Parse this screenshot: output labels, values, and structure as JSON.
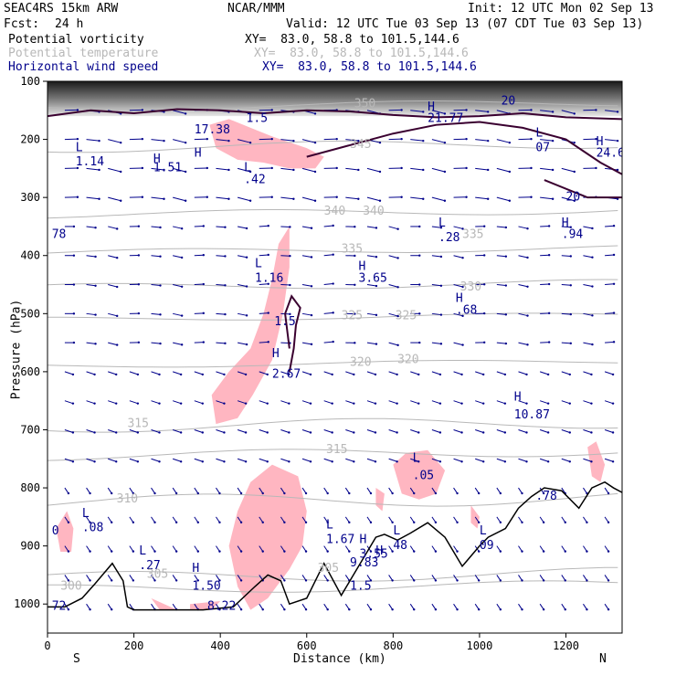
{
  "header": {
    "model": "SEAC4RS 15km ARW",
    "org": "NCAR/MMM",
    "init": "Init: 12 UTC Mon 02 Sep 13",
    "fcst_label": "Fcst:",
    "fcst_value": "24 h",
    "valid": "Valid: 12 UTC Tue 03 Sep 13 (07 CDT Tue 03 Sep 13)",
    "fields": [
      {
        "name": "Potential vorticity",
        "xy": "XY=  83.0, 58.8 to 101.5,144.6",
        "color": "#000000"
      },
      {
        "name": "Potential temperature",
        "xy": "XY=  83.0, 58.8 to 101.5,144.6",
        "color": "#b8b8b8"
      },
      {
        "name": "Horizontal wind speed",
        "xy": "XY=  83.0, 58.8 to 101.5,144.6",
        "color": "#00008b"
      }
    ]
  },
  "chart_data": {
    "type": "cross-section",
    "xlabel": "Distance (km)",
    "ylabel": "Pressure (hPa)",
    "xlim": [
      0,
      1330
    ],
    "ylim": [
      100,
      1050
    ],
    "x_ticks": [
      0,
      200,
      400,
      600,
      800,
      1000,
      1200
    ],
    "y_ticks": [
      100,
      200,
      300,
      400,
      500,
      600,
      700,
      800,
      900,
      1000
    ],
    "end_labels": {
      "left": "S",
      "right": "N"
    },
    "terrain_surface": [
      [
        0,
        1005
      ],
      [
        40,
        1005
      ],
      [
        80,
        990
      ],
      [
        110,
        965
      ],
      [
        150,
        930
      ],
      [
        175,
        960
      ],
      [
        185,
        1005
      ],
      [
        200,
        1010
      ],
      [
        260,
        1010
      ],
      [
        360,
        1010
      ],
      [
        430,
        1005
      ],
      [
        480,
        970
      ],
      [
        510,
        950
      ],
      [
        540,
        960
      ],
      [
        560,
        1000
      ],
      [
        600,
        990
      ],
      [
        640,
        930
      ],
      [
        680,
        985
      ],
      [
        720,
        935
      ],
      [
        760,
        885
      ],
      [
        780,
        880
      ],
      [
        810,
        890
      ],
      [
        840,
        878
      ],
      [
        880,
        860
      ],
      [
        920,
        885
      ],
      [
        960,
        935
      ],
      [
        1000,
        900
      ],
      [
        1020,
        885
      ],
      [
        1060,
        870
      ],
      [
        1090,
        835
      ],
      [
        1120,
        815
      ],
      [
        1150,
        800
      ],
      [
        1190,
        805
      ],
      [
        1230,
        835
      ],
      [
        1260,
        800
      ],
      [
        1290,
        790
      ],
      [
        1310,
        800
      ],
      [
        1330,
        808
      ]
    ],
    "pv_labels": [
      {
        "x": 340,
        "p": 230,
        "t": "H"
      },
      {
        "x": 340,
        "p": 190,
        "t": "17.38"
      },
      {
        "x": 455,
        "p": 255,
        "t": "L"
      },
      {
        "x": 455,
        "p": 275,
        "t": ".42"
      },
      {
        "x": 65,
        "p": 220,
        "t": "L"
      },
      {
        "x": 65,
        "p": 245,
        "t": "1.14"
      },
      {
        "x": 245,
        "p": 240,
        "t": "H"
      },
      {
        "x": 245,
        "p": 255,
        "t": "1.51"
      },
      {
        "x": 460,
        "p": 170,
        "t": "1.5"
      },
      {
        "x": 880,
        "p": 150,
        "t": "H"
      },
      {
        "x": 880,
        "p": 170,
        "t": "21.77"
      },
      {
        "x": 1050,
        "p": 140,
        "t": "20"
      },
      {
        "x": 1130,
        "p": 195,
        "t": "L"
      },
      {
        "x": 1130,
        "p": 220,
        "t": "07"
      },
      {
        "x": 1270,
        "p": 210,
        "t": "H"
      },
      {
        "x": 1270,
        "p": 230,
        "t": "24.6"
      },
      {
        "x": 1200,
        "p": 305,
        "t": "20"
      },
      {
        "x": 480,
        "p": 420,
        "t": "L"
      },
      {
        "x": 480,
        "p": 445,
        "t": "1.16"
      },
      {
        "x": 1190,
        "p": 350,
        "t": "H"
      },
      {
        "x": 1190,
        "p": 370,
        "t": ".94"
      },
      {
        "x": 905,
        "p": 350,
        "t": "L"
      },
      {
        "x": 905,
        "p": 375,
        "t": ".28"
      },
      {
        "x": 720,
        "p": 425,
        "t": "H"
      },
      {
        "x": 720,
        "p": 445,
        "t": "3.65"
      },
      {
        "x": 945,
        "p": 480,
        "t": "H"
      },
      {
        "x": 945,
        "p": 500,
        "t": ".68"
      },
      {
        "x": 525,
        "p": 520,
        "t": "1.5"
      },
      {
        "x": 520,
        "p": 575,
        "t": "H"
      },
      {
        "x": 520,
        "p": 610,
        "t": "2.67"
      },
      {
        "x": 1080,
        "p": 650,
        "t": "H"
      },
      {
        "x": 1080,
        "p": 680,
        "t": "10.87"
      },
      {
        "x": 845,
        "p": 755,
        "t": "L"
      },
      {
        "x": 845,
        "p": 785,
        "t": ".05"
      },
      {
        "x": 1130,
        "p": 820,
        "t": ".78"
      },
      {
        "x": 80,
        "p": 850,
        "t": "L"
      },
      {
        "x": 80,
        "p": 875,
        "t": ".08"
      },
      {
        "x": 645,
        "p": 870,
        "t": "L"
      },
      {
        "x": 645,
        "p": 895,
        "t": "1.67"
      },
      {
        "x": 800,
        "p": 880,
        "t": "L"
      },
      {
        "x": 800,
        "p": 905,
        "t": "48"
      },
      {
        "x": 1000,
        "p": 880,
        "t": "L"
      },
      {
        "x": 1000,
        "p": 905,
        "t": "09"
      },
      {
        "x": 722,
        "p": 895,
        "t": "H"
      },
      {
        "x": 722,
        "p": 920,
        "t": "3.55"
      },
      {
        "x": 760,
        "p": 915,
        "t": "H"
      },
      {
        "x": 700,
        "p": 935,
        "t": "9.83"
      },
      {
        "x": 212,
        "p": 915,
        "t": "L"
      },
      {
        "x": 212,
        "p": 940,
        "t": ".27"
      },
      {
        "x": 335,
        "p": 945,
        "t": "H"
      },
      {
        "x": 335,
        "p": 975,
        "t": "1.50"
      },
      {
        "x": 370,
        "p": 1010,
        "t": "8.22"
      },
      {
        "x": 700,
        "p": 975,
        "t": "1.5"
      },
      {
        "x": 10,
        "p": 880,
        "t": "0"
      },
      {
        "x": 10,
        "p": 1010,
        "t": "72"
      },
      {
        "x": 10,
        "p": 370,
        "t": "78"
      }
    ],
    "theta_labels": [
      {
        "x": 710,
        "p": 145,
        "t": "350"
      },
      {
        "x": 700,
        "p": 215,
        "t": "345"
      },
      {
        "x": 640,
        "p": 330,
        "t": "340"
      },
      {
        "x": 730,
        "p": 330,
        "t": "340"
      },
      {
        "x": 680,
        "p": 395,
        "t": "335"
      },
      {
        "x": 960,
        "p": 370,
        "t": "335"
      },
      {
        "x": 955,
        "p": 460,
        "t": "330"
      },
      {
        "x": 680,
        "p": 510,
        "t": "325"
      },
      {
        "x": 805,
        "p": 510,
        "t": "325"
      },
      {
        "x": 700,
        "p": 590,
        "t": "320"
      },
      {
        "x": 810,
        "p": 585,
        "t": "320"
      },
      {
        "x": 185,
        "p": 695,
        "t": "315"
      },
      {
        "x": 645,
        "p": 740,
        "t": "315"
      },
      {
        "x": 160,
        "p": 825,
        "t": "310"
      },
      {
        "x": 230,
        "p": 955,
        "t": "305"
      },
      {
        "x": 625,
        "p": 945,
        "t": "305"
      },
      {
        "x": 30,
        "p": 975,
        "t": "300"
      }
    ]
  }
}
